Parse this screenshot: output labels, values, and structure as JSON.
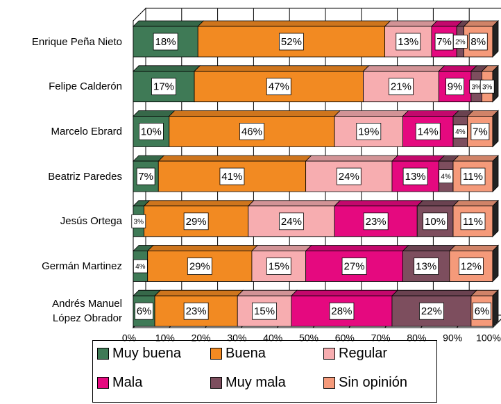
{
  "chart_data": {
    "type": "stacked-bar-3d",
    "categories": [
      "Enrique Peña Nieto",
      "Felipe Calderón",
      "Marcelo Ebrard",
      "Beatriz Paredes",
      "Jesús Ortega",
      "Germán Martinez",
      "Andrés Manuel López Obrador"
    ],
    "series": [
      {
        "name": "Muy buena",
        "color": "#3f7a56",
        "values": [
          18,
          17,
          10,
          7,
          3,
          4,
          6
        ],
        "value_labels": [
          "18%",
          "17%",
          "10%",
          "7%",
          "3%",
          "4%",
          "6%"
        ]
      },
      {
        "name": "Buena",
        "color": "#f28a22",
        "values": [
          52,
          47,
          46,
          41,
          29,
          29,
          23
        ],
        "value_labels": [
          "52%",
          "47%",
          "46%",
          "41%",
          "29%",
          "29%",
          "23%"
        ]
      },
      {
        "name": "Regular",
        "color": "#f7adb0",
        "values": [
          13,
          21,
          19,
          24,
          24,
          15,
          15
        ],
        "value_labels": [
          "13%",
          "21%",
          "19%",
          "24%",
          "24%",
          "15%",
          "15%"
        ]
      },
      {
        "name": "Mala",
        "color": "#e5097f",
        "values": [
          7,
          9,
          14,
          13,
          23,
          27,
          28
        ],
        "value_labels": [
          "7%",
          "9%",
          "14%",
          "13%",
          "23%",
          "27%",
          "28%"
        ]
      },
      {
        "name": "Muy mala",
        "color": "#7d4e5e",
        "values": [
          2,
          3,
          4,
          4,
          10,
          13,
          22
        ],
        "value_labels": [
          "2%",
          "3%",
          "4%",
          "4%",
          "10%",
          "13%",
          "22%"
        ]
      },
      {
        "name": "Sin opinión",
        "color": "#f59a7a",
        "values": [
          8,
          3,
          7,
          11,
          11,
          12,
          6
        ],
        "value_labels": [
          "8%",
          "3%",
          "7%",
          "11%",
          "11%",
          "12%",
          "6%"
        ]
      }
    ],
    "xlim": [
      0,
      100
    ],
    "xticks": [
      {
        "value": 0,
        "label": "0%"
      },
      {
        "value": 10,
        "label": "10%"
      },
      {
        "value": 20,
        "label": "20%"
      },
      {
        "value": 30,
        "label": "30%"
      },
      {
        "value": 40,
        "label": "40%"
      },
      {
        "value": 50,
        "label": "50%"
      },
      {
        "value": 60,
        "label": "60%"
      },
      {
        "value": 70,
        "label": "70%"
      },
      {
        "value": 80,
        "label": "80%"
      },
      {
        "value": 90,
        "label": "90%"
      },
      {
        "value": 100,
        "label": "100%"
      }
    ],
    "grid": true,
    "legend": "bottom"
  }
}
